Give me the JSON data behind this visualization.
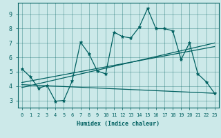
{
  "xlabel": "Humidex (Indice chaleur)",
  "xlim": [
    -0.5,
    23.5
  ],
  "ylim": [
    2.5,
    9.8
  ],
  "yticks": [
    3,
    4,
    5,
    6,
    7,
    8,
    9
  ],
  "xticks": [
    0,
    1,
    2,
    3,
    4,
    5,
    6,
    7,
    8,
    9,
    10,
    11,
    12,
    13,
    14,
    15,
    16,
    17,
    18,
    19,
    20,
    21,
    22,
    23
  ],
  "background_color": "#cce9e9",
  "line_color": "#006060",
  "lines": [
    {
      "x": [
        0,
        1,
        2,
        3,
        4,
        5,
        6,
        7,
        8,
        9,
        10,
        11,
        12,
        13,
        14,
        15,
        16,
        17,
        18,
        19,
        20,
        21,
        22,
        23
      ],
      "y": [
        5.2,
        4.65,
        3.85,
        4.05,
        2.95,
        3.0,
        4.35,
        7.05,
        6.25,
        5.05,
        4.85,
        7.75,
        7.45,
        7.35,
        8.1,
        9.4,
        8.0,
        8.0,
        7.85,
        5.85,
        7.0,
        4.85,
        4.3,
        3.5
      ],
      "marker": "*",
      "linewidth": 0.9
    },
    {
      "x": [
        0,
        23
      ],
      "y": [
        3.9,
        7.0
      ],
      "marker": null,
      "linewidth": 0.9
    },
    {
      "x": [
        0,
        23
      ],
      "y": [
        4.1,
        3.5
      ],
      "marker": null,
      "linewidth": 0.9
    },
    {
      "x": [
        0,
        23
      ],
      "y": [
        4.25,
        6.75
      ],
      "marker": null,
      "linewidth": 0.9
    }
  ]
}
